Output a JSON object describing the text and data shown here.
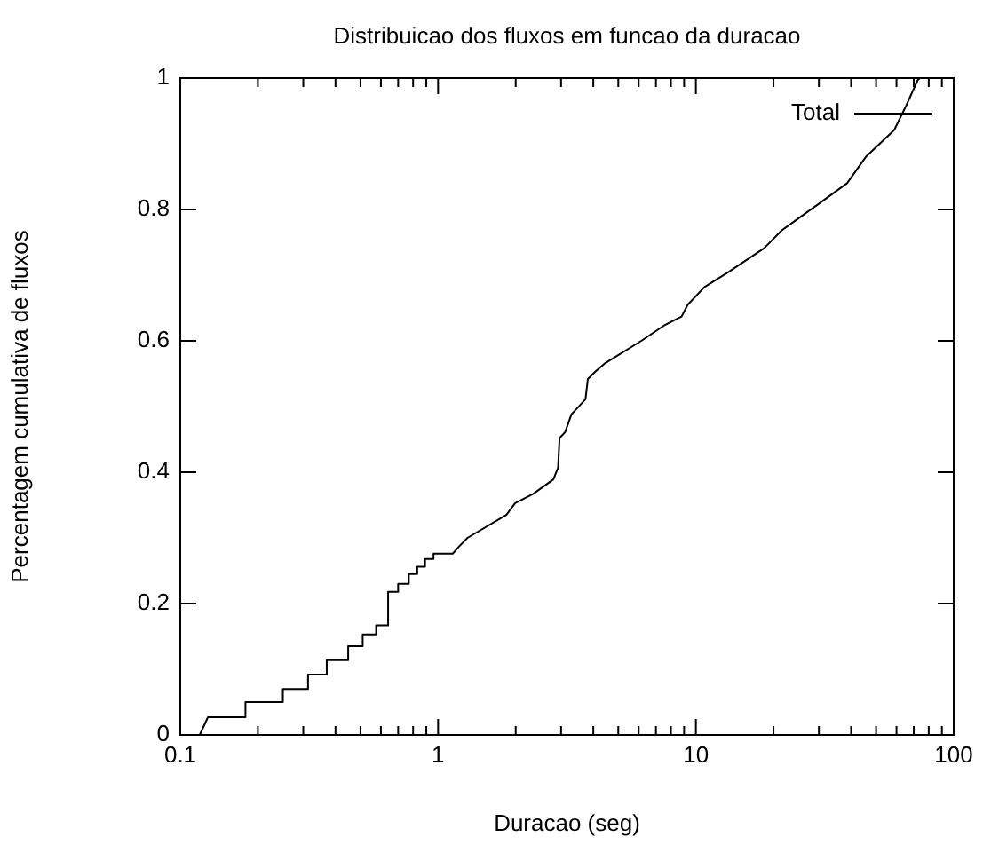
{
  "chart_data": {
    "type": "line",
    "title": "Distribuicao dos fluxos em funcao da duracao",
    "xlabel": "Duracao (seg)",
    "ylabel": "Percentagem cumulativa de fluxos",
    "log": "x",
    "xlim": [
      0.1,
      100
    ],
    "ylim": [
      0,
      1
    ],
    "xticks": [
      {
        "value": 0.1,
        "label": "0.1"
      },
      {
        "value": 0.2,
        "label": null
      },
      {
        "value": 0.3,
        "label": null
      },
      {
        "value": 0.4,
        "label": null
      },
      {
        "value": 0.5,
        "label": null
      },
      {
        "value": 0.6,
        "label": null
      },
      {
        "value": 0.7,
        "label": null
      },
      {
        "value": 0.8,
        "label": null
      },
      {
        "value": 0.9,
        "label": null
      },
      1,
      {
        "value": 2,
        "label": null
      },
      {
        "value": 3,
        "label": null
      },
      {
        "value": 4,
        "label": null
      },
      {
        "value": 5,
        "label": null
      },
      {
        "value": 6,
        "label": null
      },
      {
        "value": 7,
        "label": null
      },
      {
        "value": 8,
        "label": null
      },
      {
        "value": 9,
        "label": null
      },
      10,
      {
        "value": 20,
        "label": null
      },
      {
        "value": 30,
        "label": null
      },
      {
        "value": 40,
        "label": null
      },
      {
        "value": 50,
        "label": null
      },
      {
        "value": 60,
        "label": null
      },
      {
        "value": 70,
        "label": null
      },
      {
        "value": 80,
        "label": null
      },
      {
        "value": 90,
        "label": null
      },
      100
    ],
    "yticks": [
      0,
      0.2,
      0.4,
      0.6,
      0.8,
      1
    ],
    "grid": false,
    "legend": "top right",
    "marker": "none",
    "line_style": "solid",
    "series": [
      {
        "name": "Total",
        "color": "#000000",
        "x": [
          0.119,
          0.128,
          0.179,
          0.179,
          0.25,
          0.25,
          0.313,
          0.313,
          0.37,
          0.37,
          0.448,
          0.448,
          0.51,
          0.51,
          0.575,
          0.575,
          0.64,
          0.64,
          0.7,
          0.7,
          0.77,
          0.77,
          0.83,
          0.83,
          0.89,
          0.89,
          0.96,
          0.96,
          1.14,
          1.2,
          1.3,
          1.84,
          1.99,
          2.34,
          2.8,
          2.92,
          2.96,
          3.11,
          3.29,
          3.73,
          3.81,
          4.07,
          4.41,
          6.2,
          7.5,
          8.8,
          9.3,
          10.8,
          13.4,
          18.4,
          21.5,
          24.9,
          29.8,
          38.6,
          45.6,
          58.8,
          65.2,
          72.5,
          74
        ],
        "values": [
          0,
          0.027,
          0.027,
          0.05,
          0.05,
          0.07,
          0.07,
          0.092,
          0.092,
          0.114,
          0.114,
          0.135,
          0.135,
          0.153,
          0.153,
          0.167,
          0.167,
          0.218,
          0.218,
          0.23,
          0.23,
          0.245,
          0.245,
          0.256,
          0.256,
          0.268,
          0.268,
          0.276,
          0.276,
          0.286,
          0.3,
          0.335,
          0.353,
          0.367,
          0.389,
          0.407,
          0.452,
          0.461,
          0.488,
          0.511,
          0.542,
          0.553,
          0.565,
          0.601,
          0.623,
          0.637,
          0.655,
          0.682,
          0.705,
          0.741,
          0.768,
          0.786,
          0.808,
          0.84,
          0.88,
          0.921,
          0.957,
          0.997,
          1
        ]
      }
    ]
  }
}
